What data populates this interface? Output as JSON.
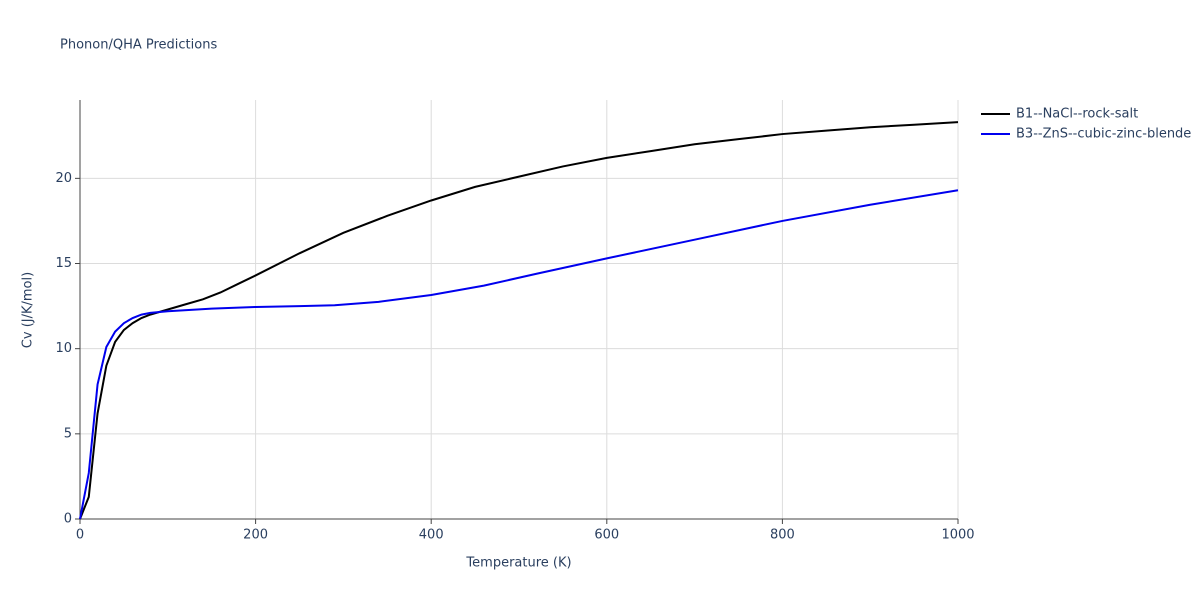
{
  "chart_data": {
    "type": "line",
    "title": "Phonon/QHA Predictions",
    "x_label": "Temperature (K)",
    "y_label": "Cv (J/K/mol)",
    "xlim": [
      0,
      1000
    ],
    "xticks": [
      0,
      200,
      400,
      600,
      800,
      1000
    ],
    "ylim": [
      0,
      24.6
    ],
    "yticks": [
      0,
      5,
      10,
      15,
      20
    ],
    "grid": true,
    "legend": "outside-right",
    "series": [
      {
        "name": "B1--NaCl--rock-salt",
        "color": "#000000",
        "x": [
          0,
          10,
          20,
          30,
          40,
          50,
          60,
          70,
          80,
          100,
          120,
          140,
          160,
          180,
          200,
          250,
          300,
          350,
          400,
          450,
          500,
          550,
          600,
          650,
          700,
          750,
          800,
          850,
          900,
          950,
          1000
        ],
        "values": [
          0,
          1.3,
          6.2,
          9.0,
          10.4,
          11.1,
          11.5,
          11.8,
          12.0,
          12.3,
          12.6,
          12.9,
          13.3,
          13.8,
          14.3,
          15.6,
          16.8,
          17.8,
          18.7,
          19.5,
          20.1,
          20.7,
          21.2,
          21.6,
          22.0,
          22.3,
          22.6,
          22.8,
          23.0,
          23.15,
          23.3
        ]
      },
      {
        "name": "B3--ZnS--cubic-zinc-blende",
        "color": "#0000ee",
        "x": [
          0,
          10,
          20,
          30,
          40,
          50,
          60,
          70,
          80,
          100,
          150,
          200,
          250,
          290,
          340,
          400,
          460,
          520,
          600,
          700,
          800,
          900,
          1000
        ],
        "values": [
          0,
          2.7,
          7.9,
          10.1,
          11.0,
          11.5,
          11.8,
          12.0,
          12.1,
          12.2,
          12.35,
          12.45,
          12.5,
          12.55,
          12.75,
          13.15,
          13.7,
          14.4,
          15.3,
          16.4,
          17.5,
          18.45,
          19.3
        ]
      }
    ]
  }
}
